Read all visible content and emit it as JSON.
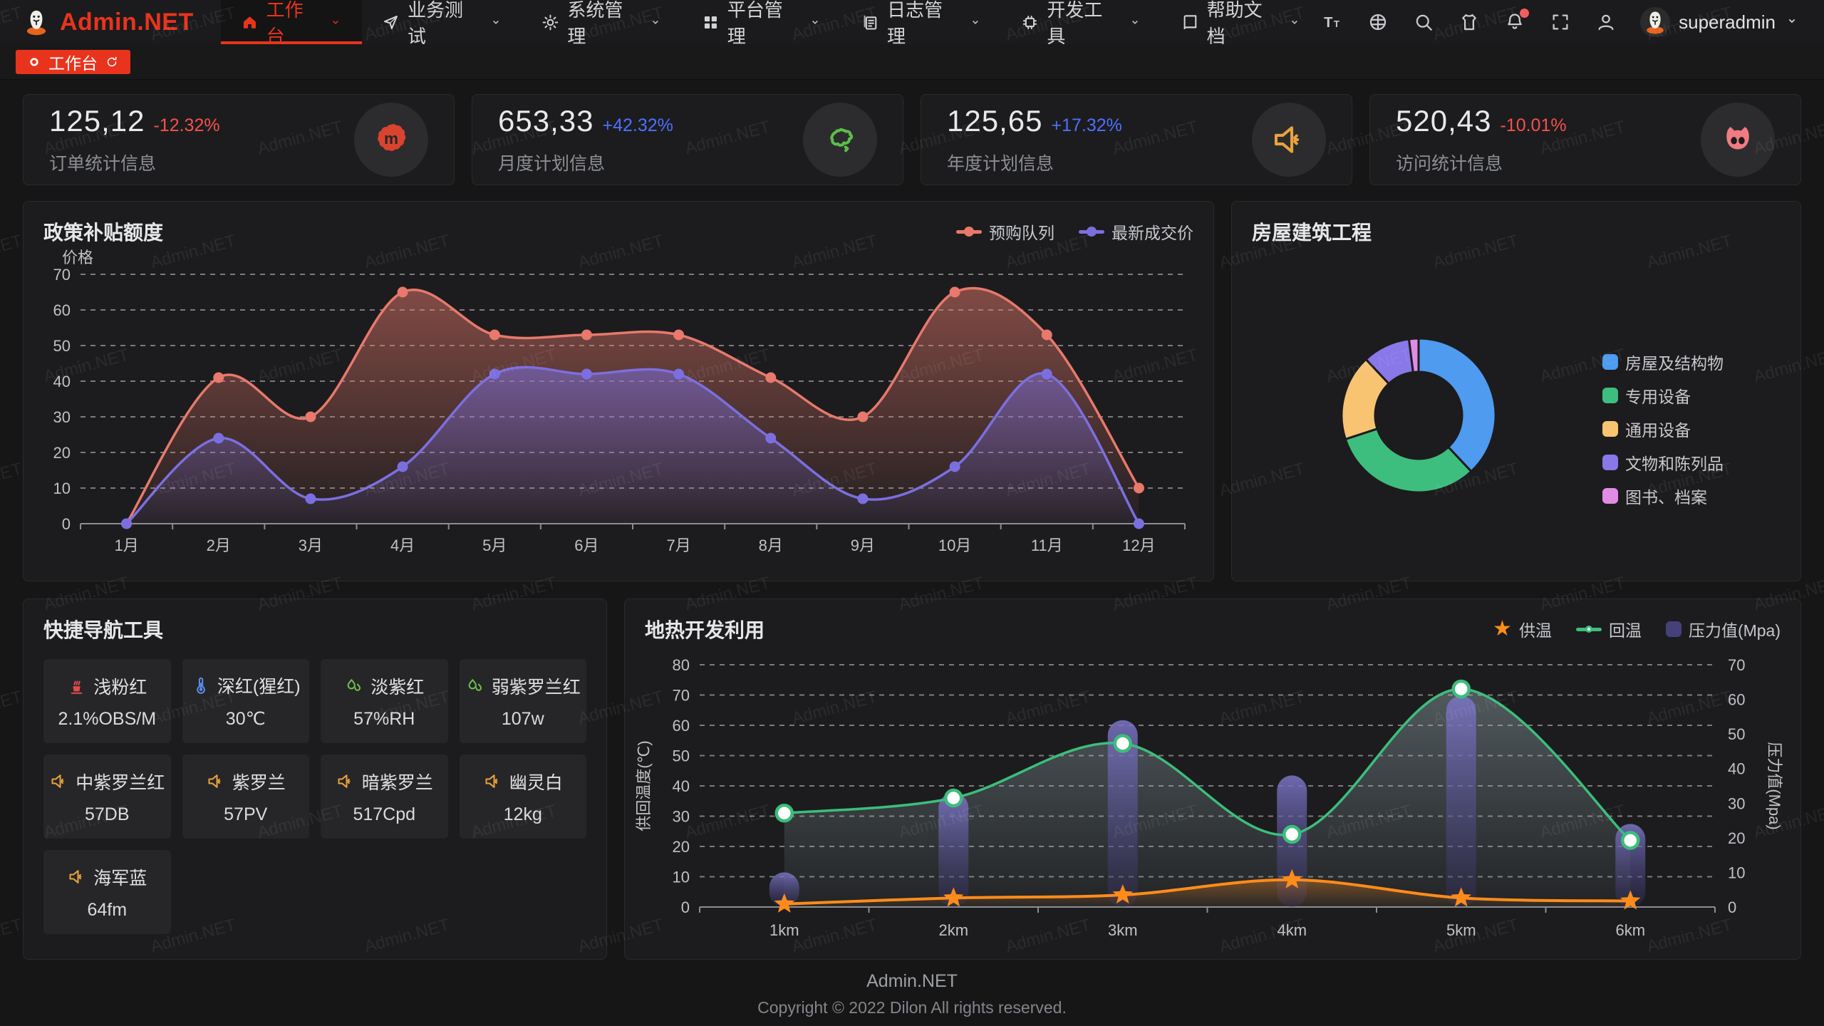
{
  "app": {
    "name": "Admin.NET",
    "watermark": "Admin.NET"
  },
  "colors": {
    "accent": "#E8341D",
    "delta_up": "#4D70FF",
    "delta_down": "#F4514E"
  },
  "navbar": {
    "menu": [
      {
        "key": "workbench",
        "label": "工作台",
        "icon": "home",
        "active": true
      },
      {
        "key": "business-test",
        "label": "业务测试",
        "icon": "send",
        "active": false
      },
      {
        "key": "system-manage",
        "label": "系统管理",
        "icon": "gear",
        "active": false
      },
      {
        "key": "platform-manage",
        "label": "平台管理",
        "icon": "grid",
        "active": false
      },
      {
        "key": "log-manage",
        "label": "日志管理",
        "icon": "log",
        "active": false
      },
      {
        "key": "dev-tools",
        "label": "开发工具",
        "icon": "chip",
        "active": false
      },
      {
        "key": "help-docs",
        "label": "帮助文档",
        "icon": "book",
        "active": false
      }
    ],
    "tools": [
      {
        "key": "font-size",
        "icon": "fontsize",
        "badge": false
      },
      {
        "key": "language",
        "icon": "language",
        "badge": false
      },
      {
        "key": "search",
        "icon": "search",
        "badge": false
      },
      {
        "key": "theme",
        "icon": "shirt",
        "badge": false
      },
      {
        "key": "notifications",
        "icon": "bell",
        "badge": true
      },
      {
        "key": "fullscreen",
        "icon": "fullscreen",
        "badge": false
      },
      {
        "key": "profile",
        "icon": "user",
        "badge": false
      }
    ],
    "user": {
      "name": "superadmin"
    }
  },
  "tabbar": {
    "tabs": [
      {
        "label": "工作台",
        "active": true
      }
    ]
  },
  "stat_cards": [
    {
      "key": "orders",
      "value": "125,12",
      "delta": "-12.32%",
      "trend": "down",
      "label": "订单统计信息",
      "icon": "meetup",
      "icon_color": "#D8442E"
    },
    {
      "key": "monthly-plan",
      "value": "653,33",
      "delta": "+42.32%",
      "trend": "up",
      "label": "月度计划信息",
      "icon": "chinamap",
      "icon_color": "#5BBE4A"
    },
    {
      "key": "yearly-plan",
      "value": "125,65",
      "delta": "+17.32%",
      "trend": "up",
      "label": "年度计划信息",
      "icon": "speaker",
      "icon_color": "#E8A33D"
    },
    {
      "key": "visits",
      "value": "520,43",
      "delta": "-10.01%",
      "trend": "down",
      "label": "访问统计信息",
      "icon": "cat",
      "icon_color": "#F07C82"
    }
  ],
  "chart_data": [
    {
      "id": "policy-subsidy",
      "type": "area",
      "title": "政策补贴额度",
      "ylabel": "价格",
      "ylim": [
        0,
        70
      ],
      "yticks": [
        0,
        10,
        20,
        30,
        40,
        50,
        60,
        70
      ],
      "categories": [
        "1月",
        "2月",
        "3月",
        "4月",
        "5月",
        "6月",
        "7月",
        "8月",
        "9月",
        "10月",
        "11月",
        "12月"
      ],
      "series": [
        {
          "name": "预购队列",
          "color": "#E8796C",
          "values": [
            0,
            41,
            30,
            65,
            53,
            53,
            53,
            41,
            30,
            65,
            53,
            10
          ]
        },
        {
          "name": "最新成交价",
          "color": "#7B6FE0",
          "values": [
            0,
            24,
            7,
            16,
            42,
            42,
            42,
            24,
            7,
            16,
            42,
            0
          ]
        }
      ],
      "legend_position": "top-right",
      "grid": "dashed"
    },
    {
      "id": "housing-construction",
      "type": "pie",
      "title": "房屋建筑工程",
      "donut": true,
      "unit": "percent",
      "slices": [
        {
          "name": "房屋及结构物",
          "color": "#4E9BF0",
          "value": 38
        },
        {
          "name": "专用设备",
          "color": "#3EBE7E",
          "value": 32
        },
        {
          "name": "通用设备",
          "color": "#F8C472",
          "value": 18
        },
        {
          "name": "文物和陈列品",
          "color": "#8878E8",
          "value": 10
        },
        {
          "name": "图书、档案",
          "color": "#E08CE4",
          "value": 2
        }
      ],
      "legend_position": "right"
    },
    {
      "id": "geothermal",
      "type": "mixed",
      "title": "地热开发利用",
      "categories": [
        "1km",
        "2km",
        "3km",
        "4km",
        "5km",
        "6km"
      ],
      "left_axis": {
        "label": "供回温度(℃)",
        "lim": [
          0,
          80
        ],
        "ticks": [
          0,
          10,
          20,
          30,
          40,
          50,
          60,
          70,
          80
        ]
      },
      "right_axis": {
        "label": "压力值(Mpa)",
        "lim": [
          0,
          70
        ],
        "ticks": [
          0,
          10,
          20,
          30,
          40,
          50,
          60,
          70
        ]
      },
      "series": [
        {
          "name": "供温",
          "type": "line",
          "marker": "star",
          "axis": "left",
          "color": "#FF8C1A",
          "values": [
            1,
            3,
            4,
            9,
            3,
            2
          ]
        },
        {
          "name": "回温",
          "type": "line",
          "marker": "circle",
          "axis": "left",
          "color": "#3CBE7C",
          "values": [
            31,
            36,
            54,
            24,
            72,
            22
          ]
        },
        {
          "name": "压力值(Mpa)",
          "type": "bar",
          "axis": "right",
          "color": "#46417B",
          "values": [
            10,
            33,
            54,
            38,
            61,
            24
          ]
        }
      ],
      "legend_position": "top-right"
    }
  ],
  "nav_tools": {
    "title": "快捷导航工具",
    "items": [
      {
        "label": "浅粉红",
        "value": "2.1%OBS/M",
        "icon": "burner",
        "icon_color": "#E04B4B"
      },
      {
        "label": "深红(猩红)",
        "value": "30℃",
        "icon": "thermometer",
        "icon_color": "#5B8DEF"
      },
      {
        "label": "淡紫红",
        "value": "57%RH",
        "icon": "humidity",
        "icon_color": "#6FBF4A"
      },
      {
        "label": "弱紫罗兰红",
        "value": "107w",
        "icon": "humidity",
        "icon_color": "#6FBF4A"
      },
      {
        "label": "中紫罗兰红",
        "value": "57DB",
        "icon": "speaker",
        "icon_color": "#E8A33D"
      },
      {
        "label": "紫罗兰",
        "value": "57PV",
        "icon": "speaker",
        "icon_color": "#E8A33D"
      },
      {
        "label": "暗紫罗兰",
        "value": "517Cpd",
        "icon": "speaker",
        "icon_color": "#E8A33D"
      },
      {
        "label": "幽灵白",
        "value": "12kg",
        "icon": "speaker",
        "icon_color": "#E8A33D"
      },
      {
        "label": "海军蓝",
        "value": "64fm",
        "icon": "speaker",
        "icon_color": "#E8A33D"
      }
    ]
  },
  "footer": {
    "brand": "Admin.NET",
    "copyright": "Copyright © 2022 Dilon All rights reserved."
  }
}
